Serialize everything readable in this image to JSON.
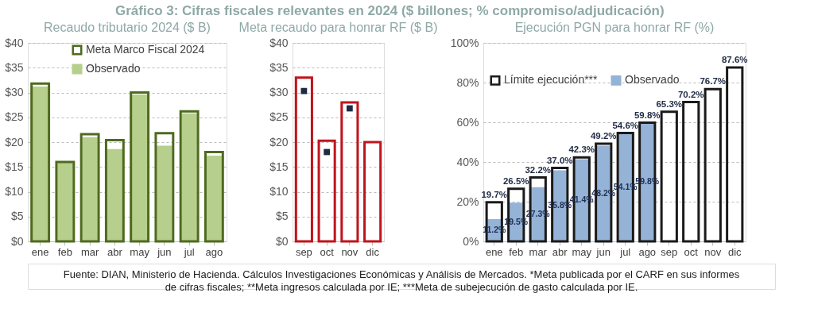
{
  "chart_data": [
    {
      "type": "bar",
      "title": "Gráfico 3: Cifras fiscales relevantes en 2024 ($ billones; % compromiso/adjudicación)",
      "subtitle": "Recaudo tributario 2024 ($ B)",
      "categories": [
        "ene",
        "feb",
        "mar",
        "abr",
        "may",
        "jun",
        "jul",
        "ago"
      ],
      "series": [
        {
          "name": "Meta Marco Fiscal 2024",
          "color": "#4f6a1f",
          "values": [
            31.8,
            16,
            21.6,
            20.4,
            30,
            21.8,
            26.2,
            18
          ]
        },
        {
          "name": "Observado",
          "color": "#b6cf8c",
          "values": [
            31.2,
            16,
            21,
            18.6,
            29.6,
            19.3,
            25.8,
            17.3
          ]
        }
      ],
      "ylim": [
        0,
        40
      ],
      "yticks": [
        {
          "value": 0,
          "label": "$0"
        },
        {
          "value": 5,
          "label": "$5"
        },
        {
          "value": 10,
          "label": "$10"
        },
        {
          "value": 15,
          "label": "$15"
        },
        {
          "value": 20,
          "label": "$20"
        },
        {
          "value": 25,
          "label": "$25"
        },
        {
          "value": 30,
          "label": "$30"
        },
        {
          "value": 35,
          "label": "$35"
        },
        {
          "value": 40,
          "label": "$40"
        }
      ],
      "grid": "y",
      "legend": "top",
      "annotations": [
        "Fuente: DIAN, Ministerio de Hacienda. Cálculos Investigaciones Económicas y Análisis de Mercados. *Meta publicada por el CARF en sus informes de cifras fiscales; **Meta ingresos calculada por IE; ***Meta de subejecución de gasto calculada por IE."
      ]
    },
    {
      "type": "bar",
      "subtitle": "Meta recaudo para honrar RF ($ B)",
      "categories": [
        "sep",
        "oct",
        "nov",
        "dic"
      ],
      "series": [
        {
          "color": "#c0141c",
          "values": [
            33,
            20.3,
            28,
            20
          ]
        },
        {
          "type": "scatter",
          "marker": "square",
          "color": "#1f2a44",
          "values": [
            30.3,
            18,
            26.8,
            null
          ]
        }
      ],
      "ylim": [
        0,
        40
      ],
      "yticks": [
        {
          "value": 0,
          "label": "$0"
        },
        {
          "value": 5,
          "label": "$5"
        },
        {
          "value": 10,
          "label": "$10"
        },
        {
          "value": 15,
          "label": "$15"
        },
        {
          "value": 20,
          "label": "$20"
        },
        {
          "value": 25,
          "label": "$25"
        },
        {
          "value": 30,
          "label": "$30"
        },
        {
          "value": 35,
          "label": "$35"
        },
        {
          "value": 40,
          "label": "$40"
        }
      ],
      "grid": "y"
    },
    {
      "type": "bar",
      "subtitle": "Ejecución PGN para honrar RF (%)",
      "categories": [
        "ene",
        "feb",
        "mar",
        "abr",
        "may",
        "jun",
        "jul",
        "ago",
        "sep",
        "oct",
        "nov",
        "dic"
      ],
      "series": [
        {
          "name": "Límite ejecución***",
          "color": "#1a1a1a",
          "values": [
            19.7,
            26.5,
            32.2,
            37.0,
            42.3,
            49.2,
            54.6,
            59.8,
            65.3,
            70.2,
            76.7,
            87.6
          ],
          "value_labels": [
            "19.7%",
            "26.5%",
            "32.2%",
            "37.0%",
            "42.3%",
            "49.2%",
            "54.6%",
            "59.8%",
            "65.3%",
            "70.2%",
            "76.7%",
            "87.6%"
          ]
        },
        {
          "name": "Observado",
          "color": "#95b3d7",
          "values": [
            11.2,
            19.5,
            27.3,
            35.8,
            41.4,
            48.2,
            54.1,
            59.8,
            null,
            null,
            null,
            null
          ],
          "value_labels": [
            "11.2%",
            "19.5%",
            "27.3%",
            "35.8%",
            "41.4%",
            "48.2%",
            "54.1%",
            "59.8%",
            null,
            null,
            null,
            null
          ]
        }
      ],
      "ylim": [
        0,
        100
      ],
      "yticks": [
        {
          "value": 0,
          "label": "0%"
        },
        {
          "value": 20,
          "label": "20%"
        },
        {
          "value": 40,
          "label": "40%"
        },
        {
          "value": 60,
          "label": "60%"
        },
        {
          "value": 80,
          "label": "80%"
        },
        {
          "value": 100,
          "label": "100%"
        }
      ],
      "grid": "y",
      "legend": "top left"
    }
  ]
}
